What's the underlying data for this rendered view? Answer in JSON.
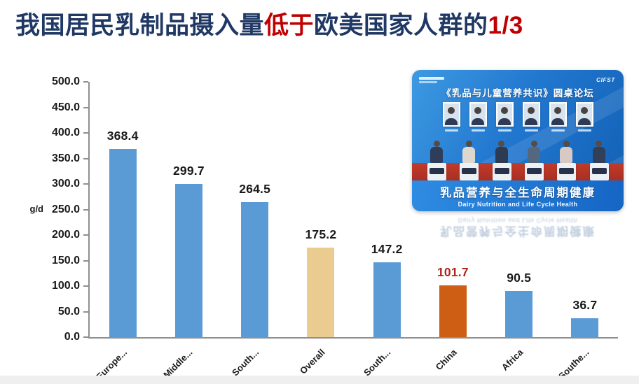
{
  "title": {
    "segments": [
      {
        "text": "我国居民乳制品摄入量",
        "color": "#1F3864"
      },
      {
        "text": "低于",
        "color": "#C00000"
      },
      {
        "text": "欧美国家人群的",
        "color": "#1F3864"
      },
      {
        "text": "1/3",
        "color": "#C00000"
      }
    ]
  },
  "chart_data": {
    "type": "bar",
    "title": "",
    "xlabel": "",
    "ylabel": "g/d",
    "ylim": [
      0,
      500
    ],
    "ytick_step": 50,
    "yticks": [
      "500.0",
      "450.0",
      "400.0",
      "350.0",
      "300.0",
      "250.0",
      "200.0",
      "150.0",
      "100.0",
      "50.0",
      "0.0"
    ],
    "categories": [
      "Europe...",
      "Middle...",
      "South...",
      "Overall",
      "South...",
      "China",
      "Africa",
      "Southe..."
    ],
    "values": [
      368.4,
      299.7,
      264.5,
      175.2,
      147.2,
      101.7,
      90.5,
      36.7
    ],
    "value_labels": [
      "368.4",
      "299.7",
      "264.5",
      "175.2",
      "147.2",
      "101.7",
      "90.5",
      "36.7"
    ],
    "bar_colors": [
      "#5B9BD5",
      "#5B9BD5",
      "#5B9BD5",
      "#EACB90",
      "#5B9BD5",
      "#CE5E14",
      "#5B9BD5",
      "#5B9BD5"
    ],
    "label_colors": [
      "#1a1a1a",
      "#1a1a1a",
      "#1a1a1a",
      "#1a1a1a",
      "#1a1a1a",
      "#B02319",
      "#1a1a1a",
      "#1a1a1a"
    ],
    "textured_bar_index": 3,
    "grid": false,
    "legend": null
  },
  "photo_card": {
    "banner_title": "《乳品与儿童营养共识》圆桌论坛",
    "org_logo": "CIFST",
    "headline_cn": "乳品营养与全生命周期健康",
    "headline_en": "Dairy Nutrition and Life Cycle Health",
    "panelist_count": 6,
    "panelist_colors": [
      "#2e3d59",
      "#ddd8cf",
      "#2c3a52",
      "#53677e",
      "#d9c9c4",
      "#333f57"
    ]
  }
}
